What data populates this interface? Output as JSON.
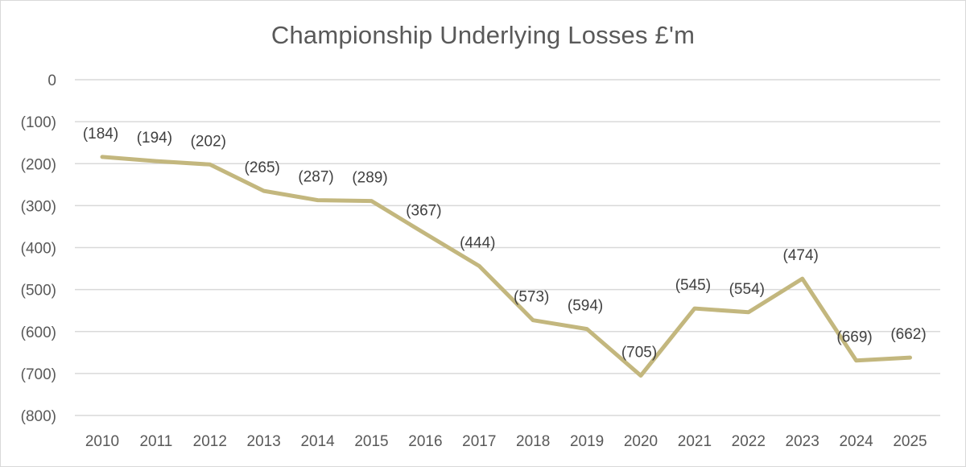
{
  "chart_data": {
    "type": "line",
    "title": "Championship Underlying Losses £'m",
    "xlabel": "",
    "ylabel": "",
    "categories": [
      "2010",
      "2011",
      "2012",
      "2013",
      "2014",
      "2015",
      "2016",
      "2017",
      "2018",
      "2019",
      "2020",
      "2021",
      "2022",
      "2023",
      "2024",
      "2025"
    ],
    "series": [
      {
        "values": [
          -184,
          -194,
          -202,
          -265,
          -287,
          -289,
          -367,
          -444,
          -573,
          -594,
          -705,
          -545,
          -554,
          -474,
          -669,
          -662
        ],
        "data_labels": [
          "(184)",
          "(194)",
          "(202)",
          "(265)",
          "(287)",
          "(289)",
          "(367)",
          "(444)",
          "(573)",
          "(594)",
          "(705)",
          "(545)",
          "(554)",
          "(474)",
          "(669)",
          "(662)"
        ],
        "color": "#c3b77e"
      }
    ],
    "ylim": [
      -800,
      0
    ],
    "y_ticks": [
      0,
      -100,
      -200,
      -300,
      -400,
      -500,
      -600,
      -700,
      -800
    ],
    "y_tick_labels": [
      "0",
      "(100)",
      "(200)",
      "(300)",
      "(400)",
      "(500)",
      "(600)",
      "(700)",
      "(800)"
    ],
    "grid": true,
    "legend": "none",
    "colors": {
      "grid": "#d9d9d9",
      "text": "#595959",
      "label": "#404040"
    }
  }
}
